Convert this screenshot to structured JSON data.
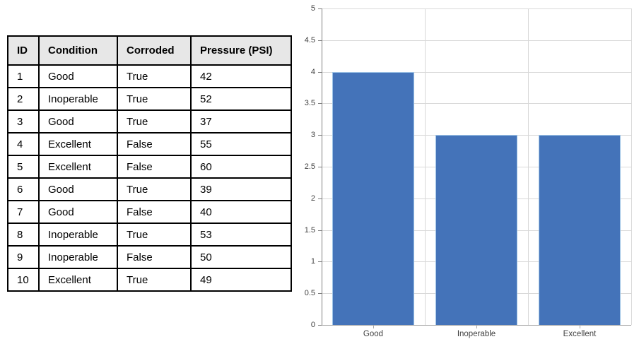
{
  "table": {
    "columns": [
      "ID",
      "Condition",
      "Corroded",
      "Pressure (PSI)"
    ],
    "rows": [
      [
        "1",
        "Good",
        "True",
        "42"
      ],
      [
        "2",
        "Inoperable",
        "True",
        "52"
      ],
      [
        "3",
        "Good",
        "True",
        "37"
      ],
      [
        "4",
        "Excellent",
        "False",
        "55"
      ],
      [
        "5",
        "Excellent",
        "False",
        "60"
      ],
      [
        "6",
        "Good",
        "True",
        "39"
      ],
      [
        "7",
        "Good",
        "False",
        "40"
      ],
      [
        "8",
        "Inoperable",
        "True",
        "53"
      ],
      [
        "9",
        "Inoperable",
        "False",
        "50"
      ],
      [
        "10",
        "Excellent",
        "True",
        "49"
      ]
    ],
    "header_bg": "#E7E7E7",
    "border_color": "#000000"
  },
  "chart_data": {
    "type": "bar",
    "categories": [
      "Good",
      "Inoperable",
      "Excellent"
    ],
    "values": [
      4,
      3,
      3
    ],
    "title": "",
    "xlabel": "",
    "ylabel": "",
    "ylim": [
      0,
      5
    ],
    "ytick_step": 0.5,
    "ytick_labels": [
      "0",
      "0.5",
      "1",
      "1.5",
      "2",
      "2.5",
      "3",
      "3.5",
      "4",
      "4.5",
      "5"
    ],
    "grid": true,
    "legend": false,
    "bar_color": "#4473B9",
    "bar_border_color": "#9DC3E6",
    "gridline_color": "#D9D9D9",
    "axis_color": "#7F7F7F",
    "label_color": "#404040"
  }
}
